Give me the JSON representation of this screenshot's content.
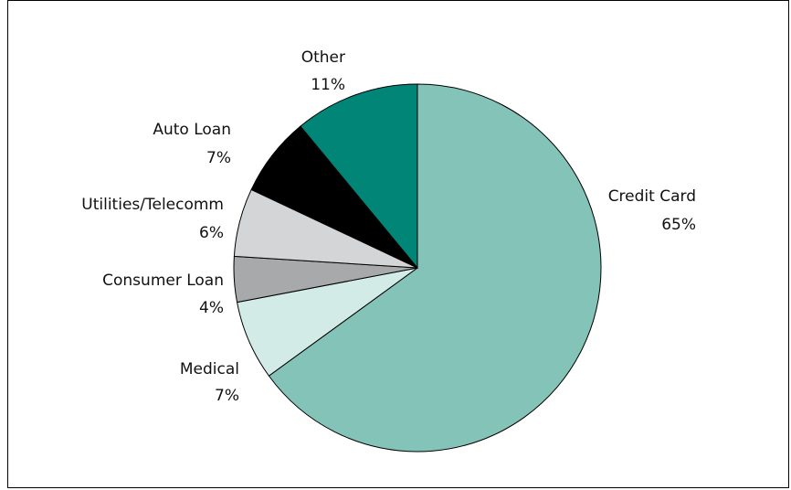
{
  "chart_data": {
    "type": "pie",
    "start_angle_deg": 0,
    "direction": "clockwise",
    "slices": [
      {
        "label": "Credit Card",
        "percent_label": "65%",
        "value": 65,
        "color": "#84c3b8"
      },
      {
        "label": "Medical",
        "percent_label": "7%",
        "value": 7,
        "color": "#d3ebe7"
      },
      {
        "label": "Consumer Loan",
        "percent_label": "4%",
        "value": 4,
        "color": "#a8a9ab"
      },
      {
        "label": "Utilities/Telecomm",
        "percent_label": "6%",
        "value": 6,
        "color": "#d4d5d6"
      },
      {
        "label": "Auto Loan",
        "percent_label": "7%",
        "value": 7,
        "color": "#000000"
      },
      {
        "label": "Other",
        "percent_label": "11%",
        "value": 11,
        "color": "#008576"
      }
    ]
  }
}
